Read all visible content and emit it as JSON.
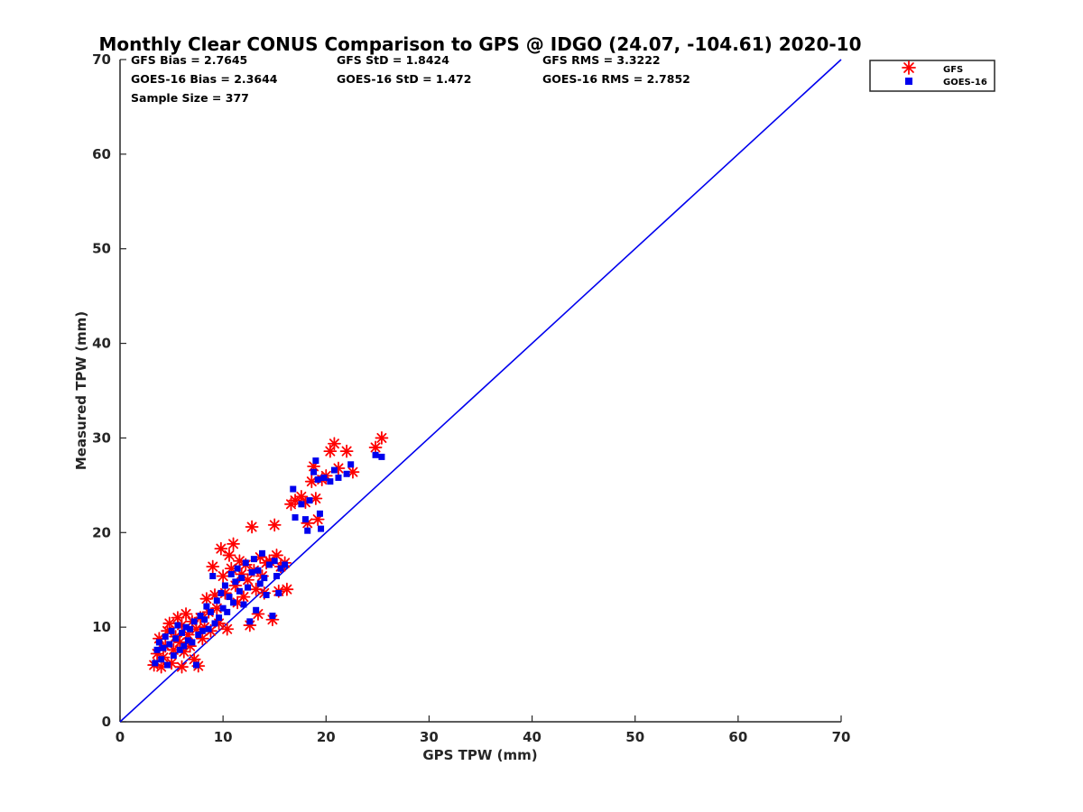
{
  "chart_data": {
    "type": "scatter",
    "title": "Monthly Clear CONUS Comparison to GPS @ IDGO (24.07, -104.61) 2020-10",
    "xlabel": "GPS TPW (mm)",
    "ylabel": "Measured TPW (mm)",
    "xlim": [
      0,
      70
    ],
    "ylim": [
      0,
      70
    ],
    "xticks": [
      "0",
      "10",
      "20",
      "30",
      "40",
      "50",
      "60",
      "70"
    ],
    "yticks": [
      "0",
      "10",
      "20",
      "30",
      "40",
      "50",
      "60",
      "70"
    ],
    "grid": false,
    "legend_position": "top-right-outside",
    "stats": {
      "gfs_bias": "GFS Bias = 2.7645",
      "gfs_std": "GFS StD = 1.8424",
      "gfs_rms": "GFS RMS = 3.3222",
      "goes_bias": "GOES-16 Bias = 2.3644",
      "goes_std": "GOES-16 StD = 1.472",
      "goes_rms": "GOES-16 RMS = 2.7852",
      "sample_size": "Sample Size = 377"
    },
    "reference_line": {
      "x": [
        0,
        70
      ],
      "y": [
        0,
        70
      ],
      "color": "#0000ee"
    },
    "series": [
      {
        "name": "GFS",
        "marker": "asterisk",
        "color": "#ff0000",
        "points": [
          [
            3.3,
            6.0
          ],
          [
            3.6,
            7.2
          ],
          [
            3.8,
            8.8
          ],
          [
            4.0,
            5.8
          ],
          [
            4.2,
            6.8
          ],
          [
            4.4,
            8.0
          ],
          [
            4.6,
            9.6
          ],
          [
            4.8,
            10.4
          ],
          [
            5.0,
            6.2
          ],
          [
            5.2,
            7.6
          ],
          [
            5.4,
            9.0
          ],
          [
            5.6,
            11.0
          ],
          [
            5.8,
            8.4
          ],
          [
            6.0,
            5.8
          ],
          [
            6.0,
            10.2
          ],
          [
            6.2,
            7.4
          ],
          [
            6.4,
            11.4
          ],
          [
            6.6,
            9.2
          ],
          [
            6.8,
            8.0
          ],
          [
            7.0,
            10.6
          ],
          [
            7.2,
            6.6
          ],
          [
            7.4,
            9.8
          ],
          [
            7.6,
            5.9
          ],
          [
            7.8,
            11.0
          ],
          [
            8.0,
            8.8
          ],
          [
            8.2,
            10.0
          ],
          [
            8.4,
            13.0
          ],
          [
            8.6,
            11.6
          ],
          [
            8.8,
            9.6
          ],
          [
            9.0,
            16.4
          ],
          [
            9.2,
            13.4
          ],
          [
            9.4,
            12.0
          ],
          [
            9.6,
            10.4
          ],
          [
            9.8,
            18.3
          ],
          [
            10.0,
            15.4
          ],
          [
            10.2,
            13.6
          ],
          [
            10.4,
            9.8
          ],
          [
            10.6,
            17.6
          ],
          [
            10.8,
            16.2
          ],
          [
            11.0,
            18.8
          ],
          [
            11.2,
            14.4
          ],
          [
            11.4,
            12.6
          ],
          [
            11.6,
            17.0
          ],
          [
            11.8,
            15.6
          ],
          [
            12.0,
            13.2
          ],
          [
            12.2,
            16.6
          ],
          [
            12.4,
            15.0
          ],
          [
            12.6,
            10.2
          ],
          [
            12.8,
            20.6
          ],
          [
            13.0,
            16.0
          ],
          [
            13.2,
            14.0
          ],
          [
            13.4,
            11.4
          ],
          [
            13.6,
            17.4
          ],
          [
            13.8,
            15.4
          ],
          [
            14.0,
            13.6
          ],
          [
            14.2,
            16.8
          ],
          [
            14.5,
            17.0
          ],
          [
            14.8,
            10.8
          ],
          [
            15.0,
            20.8
          ],
          [
            15.2,
            17.6
          ],
          [
            15.4,
            13.8
          ],
          [
            15.6,
            16.4
          ],
          [
            16.0,
            16.8
          ],
          [
            16.2,
            14.0
          ],
          [
            16.6,
            23.0
          ],
          [
            17.0,
            23.4
          ],
          [
            17.6,
            23.8
          ],
          [
            18.0,
            23.2
          ],
          [
            18.2,
            21.0
          ],
          [
            18.6,
            25.4
          ],
          [
            18.8,
            27.0
          ],
          [
            19.0,
            23.6
          ],
          [
            19.2,
            21.4
          ],
          [
            19.6,
            25.6
          ],
          [
            20.0,
            26.0
          ],
          [
            20.4,
            28.6
          ],
          [
            20.8,
            29.4
          ],
          [
            21.2,
            26.8
          ],
          [
            22.0,
            28.6
          ],
          [
            22.6,
            26.4
          ],
          [
            24.8,
            29.0
          ],
          [
            25.4,
            30.0
          ]
        ]
      },
      {
        "name": "GOES-16",
        "marker": "square",
        "color": "#0000ee",
        "points": [
          [
            3.4,
            6.2
          ],
          [
            3.6,
            7.6
          ],
          [
            3.8,
            8.4
          ],
          [
            4.0,
            6.6
          ],
          [
            4.2,
            7.8
          ],
          [
            4.4,
            9.0
          ],
          [
            4.6,
            6.0
          ],
          [
            4.8,
            8.2
          ],
          [
            5.0,
            9.6
          ],
          [
            5.2,
            7.0
          ],
          [
            5.4,
            8.8
          ],
          [
            5.6,
            10.2
          ],
          [
            5.8,
            7.6
          ],
          [
            6.0,
            9.4
          ],
          [
            6.2,
            8.0
          ],
          [
            6.4,
            10.0
          ],
          [
            6.6,
            8.6
          ],
          [
            6.8,
            9.8
          ],
          [
            7.0,
            8.4
          ],
          [
            7.2,
            10.6
          ],
          [
            7.4,
            6.0
          ],
          [
            7.6,
            9.2
          ],
          [
            7.8,
            11.2
          ],
          [
            8.0,
            9.6
          ],
          [
            8.2,
            10.8
          ],
          [
            8.4,
            12.2
          ],
          [
            8.6,
            9.8
          ],
          [
            8.8,
            11.6
          ],
          [
            9.0,
            15.4
          ],
          [
            9.2,
            10.4
          ],
          [
            9.4,
            12.8
          ],
          [
            9.6,
            11.0
          ],
          [
            9.8,
            13.6
          ],
          [
            10.0,
            12.0
          ],
          [
            10.2,
            14.4
          ],
          [
            10.4,
            11.6
          ],
          [
            10.6,
            13.2
          ],
          [
            10.8,
            15.6
          ],
          [
            11.0,
            12.6
          ],
          [
            11.2,
            14.8
          ],
          [
            11.4,
            16.2
          ],
          [
            11.6,
            13.8
          ],
          [
            11.8,
            15.2
          ],
          [
            12.0,
            12.4
          ],
          [
            12.2,
            16.8
          ],
          [
            12.4,
            14.2
          ],
          [
            12.6,
            10.6
          ],
          [
            12.8,
            15.8
          ],
          [
            13.0,
            17.2
          ],
          [
            13.2,
            11.8
          ],
          [
            13.4,
            16.0
          ],
          [
            13.6,
            14.6
          ],
          [
            13.8,
            17.8
          ],
          [
            14.0,
            15.2
          ],
          [
            14.2,
            13.4
          ],
          [
            14.5,
            16.6
          ],
          [
            14.8,
            11.2
          ],
          [
            15.0,
            17.0
          ],
          [
            15.2,
            15.4
          ],
          [
            15.4,
            13.6
          ],
          [
            15.6,
            16.2
          ],
          [
            16.0,
            16.6
          ],
          [
            16.8,
            24.6
          ],
          [
            17.0,
            21.6
          ],
          [
            17.6,
            23.0
          ],
          [
            18.0,
            21.4
          ],
          [
            18.2,
            20.2
          ],
          [
            18.4,
            23.4
          ],
          [
            18.8,
            26.4
          ],
          [
            19.0,
            27.6
          ],
          [
            19.2,
            25.6
          ],
          [
            19.4,
            22.0
          ],
          [
            19.5,
            20.4
          ],
          [
            19.8,
            25.8
          ],
          [
            20.4,
            25.4
          ],
          [
            20.8,
            26.6
          ],
          [
            21.2,
            25.8
          ],
          [
            22.0,
            26.2
          ],
          [
            22.4,
            27.2
          ],
          [
            24.8,
            28.2
          ],
          [
            25.4,
            28.0
          ]
        ]
      }
    ]
  }
}
